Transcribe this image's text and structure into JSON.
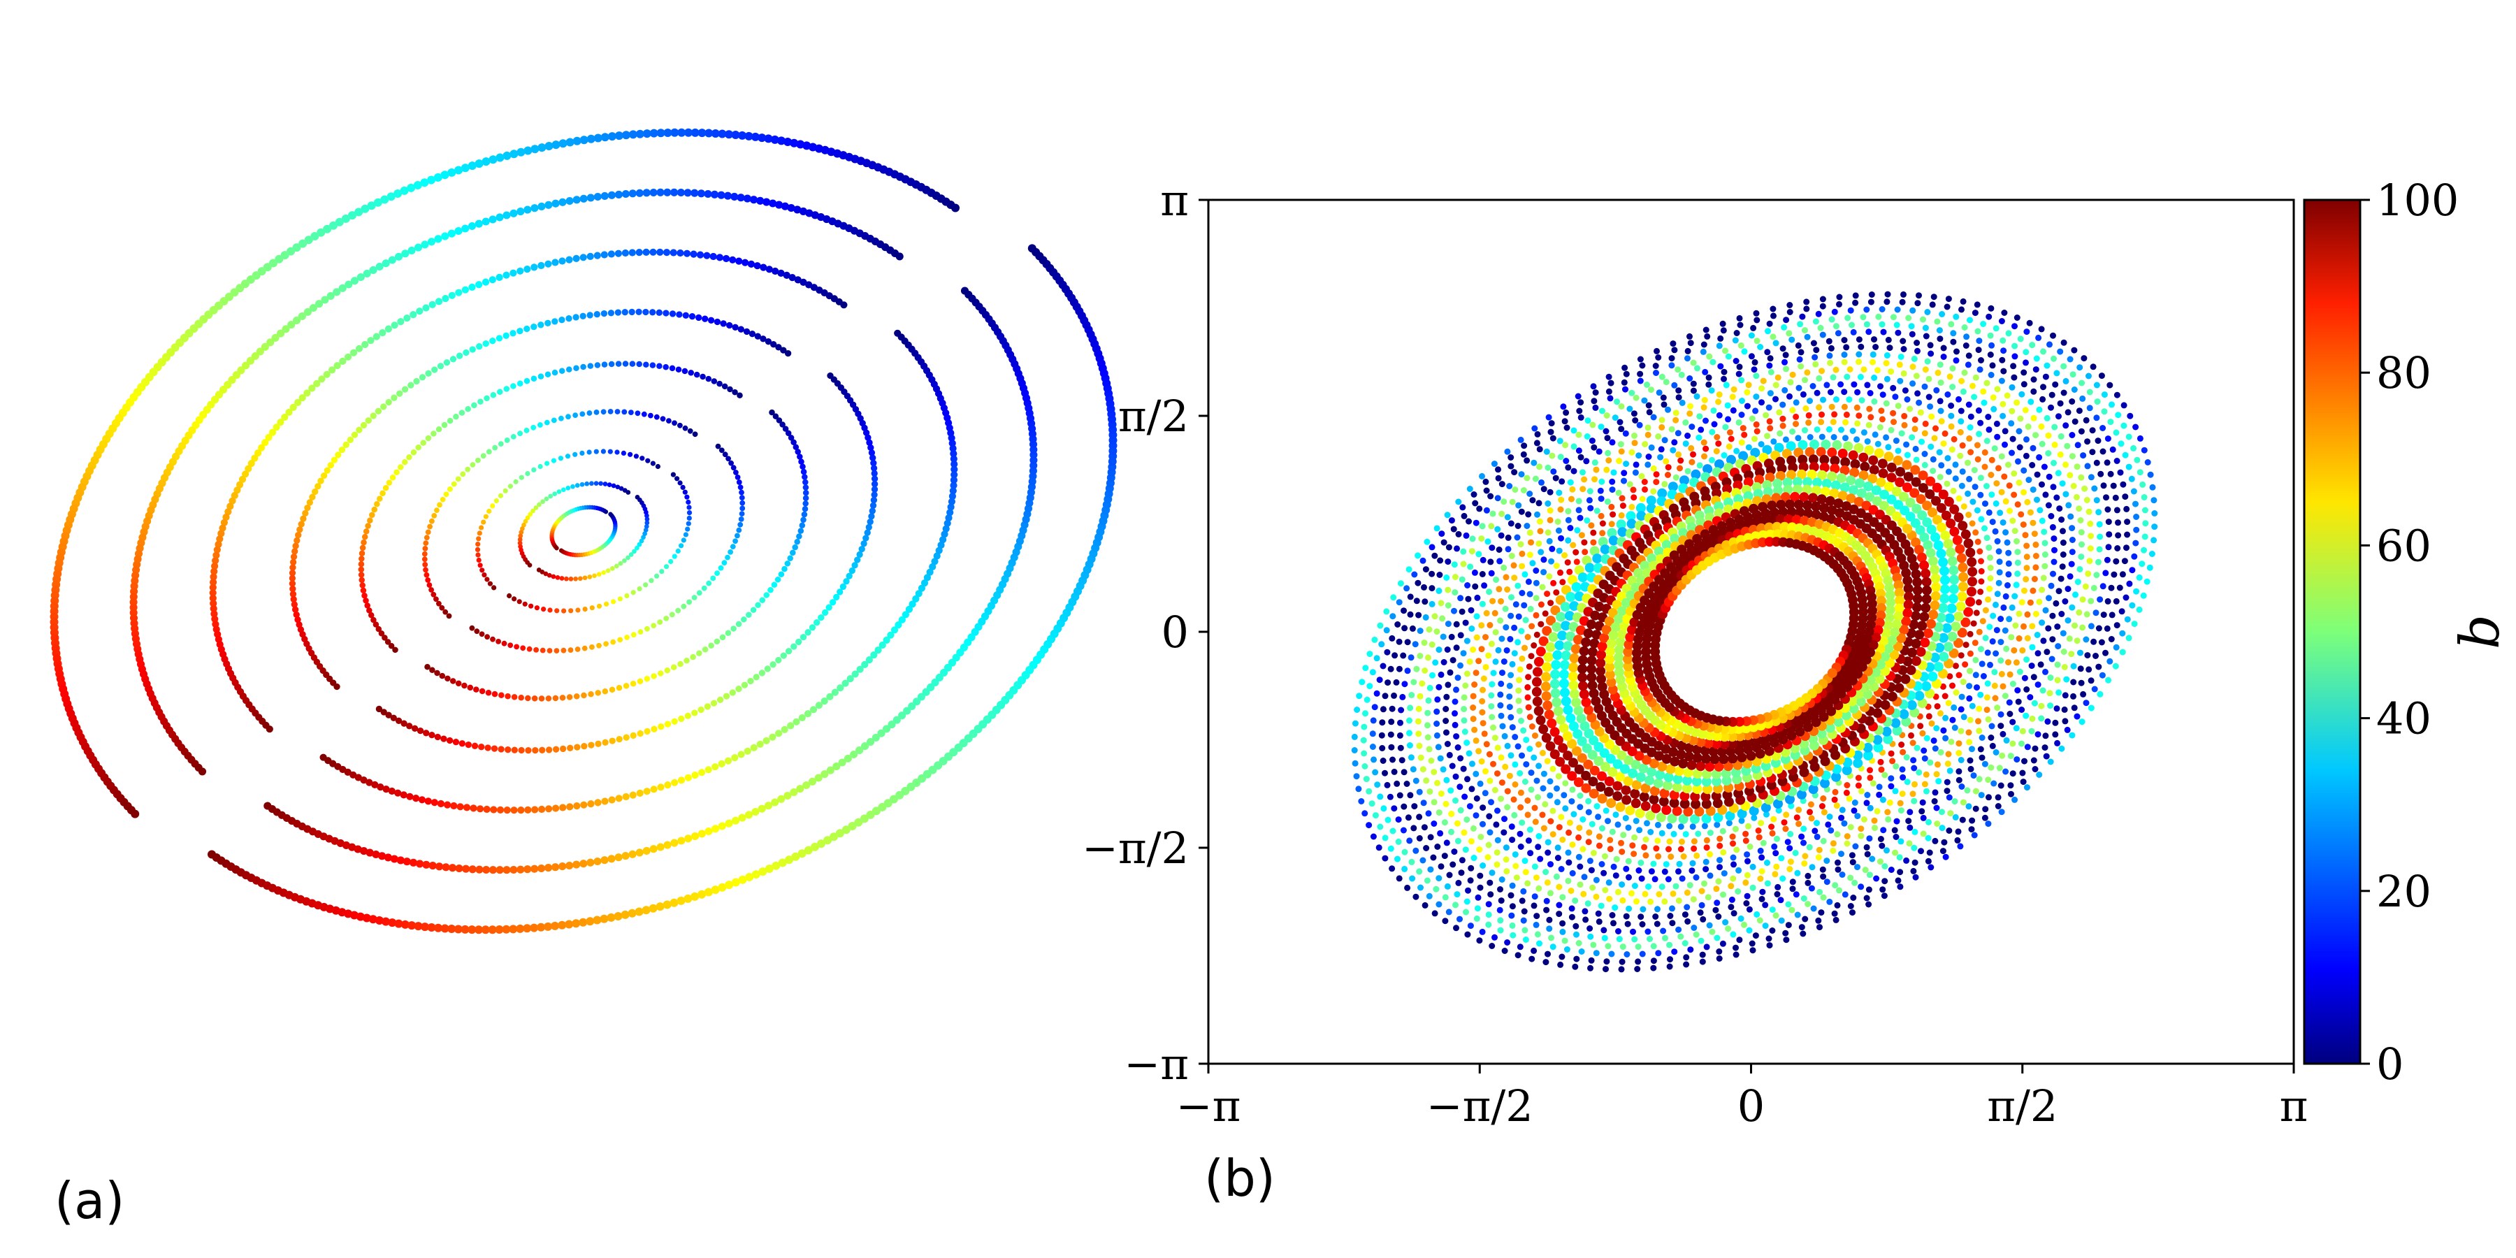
{
  "panels": {
    "a_label": "(a)",
    "b_label": "(b)"
  },
  "chart_data": [
    {
      "type": "scatter",
      "panel": "(a)",
      "description_free": true,
      "axes": "none",
      "color_scale": "jet",
      "color_range": [
        0,
        100
      ],
      "arcs": [
        {
          "r": 0.06,
          "b_start": 100,
          "b_end": 0
        },
        {
          "r": 0.12,
          "b_start": 100,
          "b_end": 0
        },
        {
          "r": 0.2,
          "b_start": 100,
          "b_end": 0
        },
        {
          "r": 0.3,
          "b_start": 100,
          "b_end": 0
        },
        {
          "r": 0.42,
          "b_start": 100,
          "b_end": 0
        },
        {
          "r": 0.55,
          "b_start": 100,
          "b_end": 0
        },
        {
          "r": 0.7,
          "b_start": 100,
          "b_end": 0
        },
        {
          "r": 0.85,
          "b_start": 100,
          "b_end": 0
        },
        {
          "r": 1.0,
          "b_start": 100,
          "b_end": 0
        }
      ]
    },
    {
      "type": "scatter",
      "panel": "(b)",
      "x_ticks": [
        "−π",
        "−π/2",
        "0",
        "π/2",
        "π"
      ],
      "y_ticks": [
        "π",
        "π/2",
        "0",
        "−π/2",
        "−π"
      ],
      "xlim": [
        -3.14159,
        3.14159
      ],
      "ylim": [
        -3.14159,
        3.14159
      ],
      "colorbar": {
        "label": "b",
        "ticks": [
          "0",
          "20",
          "40",
          "60",
          "80",
          "100"
        ],
        "range": [
          0,
          100
        ],
        "colormap": "jet"
      },
      "grid": false
    }
  ]
}
